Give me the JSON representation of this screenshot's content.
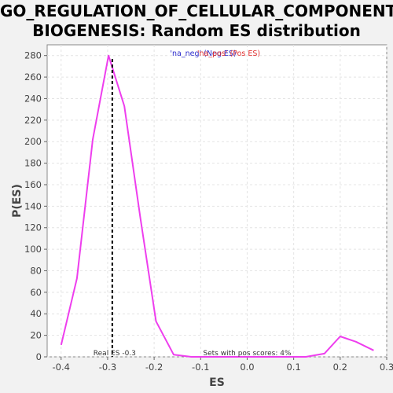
{
  "chart_data": {
    "type": "line",
    "title_line1": "GO_REGULATION_OF_CELLULAR_COMPONENT_",
    "title_line2": "BIOGENESIS: Random ES distribution",
    "xlabel": "ES",
    "ylabel": "P(ES)",
    "xlim": [
      -0.43,
      0.3
    ],
    "ylim": [
      0,
      290
    ],
    "xticks": [
      -0.4,
      -0.3,
      -0.2,
      -0.1,
      0.0,
      0.1,
      0.2,
      0.3
    ],
    "xtick_labels": [
      "-0.4",
      "-0.3",
      "-0.2",
      "-0.1",
      "0.0",
      "0.1",
      "0.2",
      "0.3"
    ],
    "yticks": [
      0,
      20,
      40,
      60,
      80,
      100,
      120,
      140,
      160,
      180,
      200,
      220,
      240,
      260,
      280
    ],
    "grid": true,
    "series": [
      {
        "color": "#ee3eee",
        "x": [
          -0.4,
          -0.366,
          -0.332,
          -0.298,
          -0.264,
          -0.23,
          -0.196,
          -0.158,
          -0.12,
          -0.086,
          -0.052,
          -0.018,
          0.016,
          0.05,
          0.084,
          0.126,
          0.166,
          0.2,
          0.234,
          0.272
        ],
        "y": [
          11,
          73,
          202,
          280,
          233,
          130,
          33,
          2,
          0,
          0,
          0,
          0,
          0,
          0,
          0,
          0,
          3,
          19,
          14,
          6
        ]
      }
    ],
    "real_es": -0.29,
    "real_es_label": "Real ES -0.3",
    "pos_scores_label": "Sets with pos scores: 4%",
    "legend": {
      "neg_label": "'na_neg' (Neg ES)",
      "pos_label": "'na_pos' (Pos ES)",
      "neg_color": "#2b2bcc",
      "pos_color": "#e03030",
      "placement": "top-center"
    }
  }
}
